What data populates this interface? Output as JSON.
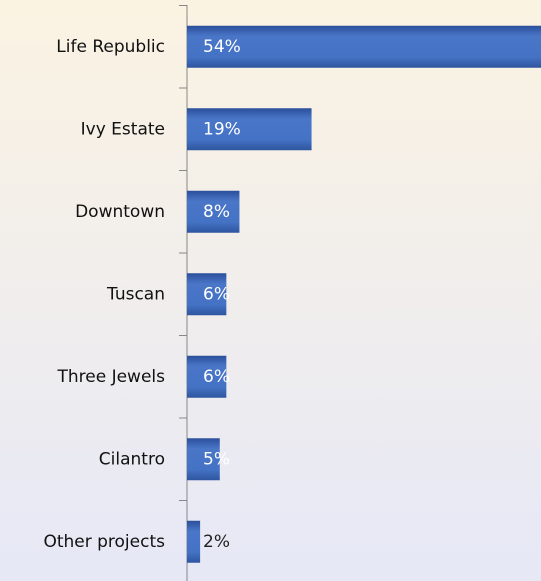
{
  "chart_data": {
    "type": "bar",
    "orientation": "horizontal",
    "categories": [
      "Life Republic",
      "Ivy Estate",
      "Downtown",
      "Tuscan",
      "Three Jewels",
      "Cilantro",
      "Other projects"
    ],
    "values": [
      54,
      19,
      8,
      6,
      6,
      5,
      2
    ],
    "value_labels": [
      "54%",
      "19%",
      "8%",
      "6%",
      "6%",
      "5%",
      "2%"
    ],
    "color": "#4472c4"
  }
}
